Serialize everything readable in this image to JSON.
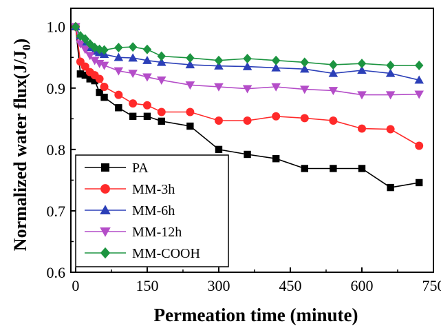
{
  "chart_data": {
    "type": "line",
    "xlabel": "Permeation time (minute)",
    "ylabel": "Normalized water flux(J/J0)",
    "ylabel_main": "Normalized water flux(J/J",
    "ylabel_sub": "0",
    "ylabel_end": ")",
    "xlim": [
      -10,
      750
    ],
    "ylim": [
      0.6,
      1.03
    ],
    "xticks": [
      0,
      150,
      300,
      450,
      600,
      750
    ],
    "xtick_labels": [
      "0",
      "150",
      "300",
      "450",
      "600",
      "750"
    ],
    "yticks": [
      0.6,
      0.7,
      0.8,
      0.9,
      1.0
    ],
    "ytick_labels": [
      "0.6",
      "0.7",
      "0.8",
      "0.9",
      "1.0"
    ],
    "legend_position": "bottom-left",
    "grid": false,
    "series": [
      {
        "name": "PA",
        "marker": "square",
        "color": "#000000",
        "x": [
          0,
          10,
          20,
          30,
          40,
          50,
          60,
          90,
          120,
          150,
          180,
          240,
          300,
          360,
          420,
          480,
          540,
          600,
          660,
          720
        ],
        "y": [
          1.0,
          0.923,
          0.921,
          0.915,
          0.912,
          0.893,
          0.885,
          0.868,
          0.854,
          0.854,
          0.846,
          0.838,
          0.8,
          0.792,
          0.785,
          0.769,
          0.769,
          0.769,
          0.738,
          0.746
        ]
      },
      {
        "name": "MM-3h",
        "marker": "circle",
        "color": "#ff2a2a",
        "x": [
          0,
          10,
          20,
          30,
          40,
          50,
          60,
          90,
          120,
          150,
          180,
          240,
          300,
          360,
          420,
          480,
          540,
          600,
          660,
          720
        ],
        "y": [
          1.0,
          0.943,
          0.935,
          0.926,
          0.921,
          0.915,
          0.902,
          0.889,
          0.875,
          0.872,
          0.861,
          0.861,
          0.847,
          0.847,
          0.854,
          0.851,
          0.847,
          0.834,
          0.833,
          0.806
        ]
      },
      {
        "name": "MM-6h",
        "marker": "triangle-up",
        "color": "#2b3fb8",
        "x": [
          0,
          10,
          20,
          30,
          40,
          50,
          60,
          90,
          120,
          150,
          180,
          240,
          300,
          360,
          420,
          480,
          540,
          600,
          660,
          720
        ],
        "y": [
          1.0,
          0.985,
          0.975,
          0.966,
          0.96,
          0.958,
          0.955,
          0.95,
          0.949,
          0.945,
          0.942,
          0.938,
          0.936,
          0.935,
          0.933,
          0.931,
          0.924,
          0.929,
          0.924,
          0.913
        ]
      },
      {
        "name": "MM-12h",
        "marker": "triangle-down",
        "color": "#b44dc8",
        "x": [
          0,
          10,
          20,
          30,
          40,
          50,
          60,
          90,
          120,
          150,
          180,
          240,
          300,
          360,
          420,
          480,
          540,
          600,
          660,
          720
        ],
        "y": [
          1.0,
          0.972,
          0.963,
          0.953,
          0.945,
          0.94,
          0.937,
          0.928,
          0.924,
          0.918,
          0.913,
          0.905,
          0.902,
          0.899,
          0.902,
          0.898,
          0.896,
          0.889,
          0.889,
          0.89
        ]
      },
      {
        "name": "MM-COOH",
        "marker": "diamond",
        "color": "#1c9440",
        "x": [
          0,
          10,
          20,
          30,
          40,
          50,
          60,
          90,
          120,
          150,
          180,
          240,
          300,
          360,
          420,
          480,
          540,
          600,
          660,
          720
        ],
        "y": [
          1.0,
          0.985,
          0.98,
          0.972,
          0.966,
          0.963,
          0.962,
          0.966,
          0.967,
          0.963,
          0.952,
          0.949,
          0.945,
          0.948,
          0.945,
          0.942,
          0.938,
          0.94,
          0.937,
          0.937
        ]
      }
    ]
  }
}
